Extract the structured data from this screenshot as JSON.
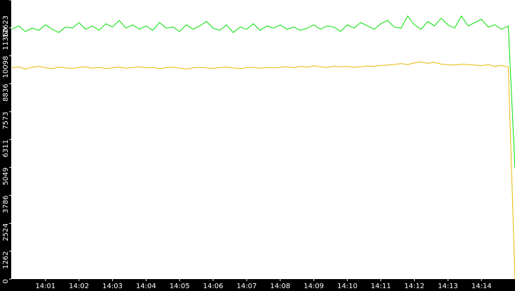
{
  "chart_data": {
    "type": "line",
    "x": [
      0,
      0.2,
      0.4,
      0.6,
      0.8,
      1,
      1.2,
      1.4,
      1.6,
      1.8,
      2,
      2.2,
      2.4,
      2.6,
      2.8,
      3,
      3.2,
      3.4,
      3.6,
      3.8,
      4,
      4.2,
      4.4,
      4.6,
      4.8,
      5,
      5.2,
      5.4,
      5.6,
      5.8,
      6,
      6.2,
      6.4,
      6.6,
      6.8,
      7,
      7.2,
      7.4,
      7.6,
      7.8,
      8,
      8.2,
      8.4,
      8.6,
      8.8,
      9,
      9.2,
      9.4,
      9.6,
      9.8,
      10,
      10.2,
      10.4,
      10.6,
      10.8,
      11,
      11.2,
      11.4,
      11.6,
      11.8,
      12,
      12.2,
      12.4,
      12.6,
      12.8,
      13,
      13.2,
      13.4,
      13.6,
      13.8,
      14,
      14.2,
      14.4,
      14.6,
      14.8,
      15
    ],
    "series": [
      {
        "color": "#00e000",
        "values": [
          11300,
          11450,
          11200,
          11350,
          11250,
          11500,
          11300,
          11150,
          11400,
          11350,
          11600,
          11300,
          11450,
          11250,
          11550,
          11400,
          11700,
          11350,
          11500,
          11300,
          11450,
          11250,
          11600,
          11350,
          11400,
          11200,
          11500,
          11300,
          11450,
          11650,
          11350,
          11250,
          11500,
          11150,
          11400,
          11300,
          11550,
          11250,
          11450,
          11350,
          11500,
          11300,
          11400,
          11250,
          11350,
          11500,
          11300,
          11450,
          11400,
          11200,
          11500,
          11350,
          11600,
          11450,
          11300,
          11550,
          11700,
          11400,
          11350,
          11900,
          11500,
          11300,
          11650,
          11450,
          11800,
          11500,
          11350,
          11900,
          11450,
          11600,
          11750,
          11400,
          11500,
          11300,
          11450,
          5000
        ]
      },
      {
        "color": "#e8b800",
        "values": [
          9550,
          9600,
          9500,
          9580,
          9620,
          9560,
          9520,
          9590,
          9550,
          9530,
          9570,
          9600,
          9540,
          9580,
          9520,
          9560,
          9590,
          9540,
          9570,
          9600,
          9550,
          9580,
          9520,
          9560,
          9590,
          9540,
          9500,
          9560,
          9580,
          9550,
          9530,
          9570,
          9590,
          9550,
          9520,
          9560,
          9580,
          9540,
          9570,
          9550,
          9580,
          9600,
          9560,
          9620,
          9580,
          9650,
          9600,
          9570,
          9630,
          9600,
          9620,
          9580,
          9600,
          9640,
          9620,
          9660,
          9680,
          9700,
          9750,
          9700,
          9780,
          9820,
          9760,
          9800,
          9720,
          9700,
          9680,
          9720,
          9700,
          9680,
          9650,
          9700,
          9620,
          9660,
          9600,
          0
        ]
      }
    ],
    "xlim": [
      0,
      15
    ],
    "xticks": [
      {
        "value": 1,
        "label": "14:01"
      },
      {
        "value": 2,
        "label": "14:02"
      },
      {
        "value": 3,
        "label": "14:03"
      },
      {
        "value": 4,
        "label": "14:04"
      },
      {
        "value": 5,
        "label": "14:05"
      },
      {
        "value": 6,
        "label": "14:06"
      },
      {
        "value": 7,
        "label": "14:07"
      },
      {
        "value": 8,
        "label": "14:08"
      },
      {
        "value": 9,
        "label": "14:09"
      },
      {
        "value": 10,
        "label": "14:10"
      },
      {
        "value": 11,
        "label": "14:11"
      },
      {
        "value": 12,
        "label": "14:12"
      },
      {
        "value": 13,
        "label": "14:13"
      },
      {
        "value": 14,
        "label": "14:14"
      }
    ],
    "ylim": [
      0,
      12623
    ],
    "yticks": [
      0,
      1262,
      2524,
      3786,
      5049,
      6311,
      7573,
      8836,
      10098,
      11360,
      12623
    ]
  }
}
